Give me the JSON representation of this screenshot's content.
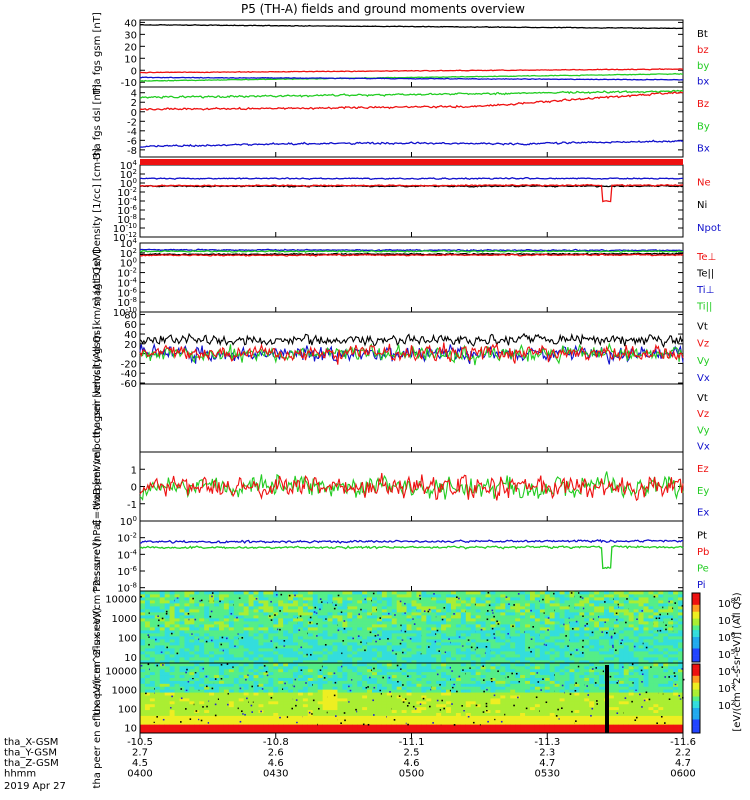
{
  "page": {
    "title": "P5 (TH-A) fields and ground moments overview"
  },
  "colors": {
    "black": "#000000",
    "red": "#ee1111",
    "green": "#22cc22",
    "blue": "#1111cc"
  },
  "bottom_axis": {
    "rows": [
      {
        "label": "tha_X-GSM",
        "values": [
          "-10.5",
          "-10.8",
          "-11.1",
          "-11.3",
          "-11.6"
        ]
      },
      {
        "label": "tha_Y-GSM",
        "values": [
          "2.7",
          "2.6",
          "2.5",
          "2.3",
          "2.2"
        ]
      },
      {
        "label": "tha_Z-GSM",
        "values": [
          "4.5",
          "4.6",
          "4.6",
          "4.7",
          "4.7"
        ]
      },
      {
        "label": "hhmm",
        "values": [
          "0400",
          "0430",
          "0500",
          "0530",
          "0600"
        ]
      }
    ],
    "date": "2019 Apr 27"
  },
  "colorbar": {
    "label": "[eV/(cm^2-s-sr-eV)] (All Qs)",
    "ticks": [
      "10^8",
      "10^7",
      "10^6",
      "10^5",
      "10^4",
      "10^3",
      "10^2"
    ]
  },
  "chart_data": [
    {
      "type": "line",
      "name": "fgs",
      "ylabel": "tha fgs gsm [nT]",
      "yticks": [
        "40",
        "30",
        "20",
        "10",
        "0",
        "-10"
      ],
      "ylim": [
        -14,
        42
      ],
      "legend": [
        {
          "name": "Bt",
          "color": "#000000"
        },
        {
          "name": "bz",
          "color": "#ee1111"
        },
        {
          "name": "by",
          "color": "#22cc22"
        },
        {
          "name": "bx",
          "color": "#1111cc"
        }
      ],
      "series": [
        {
          "name": "Bt",
          "color": "#000000",
          "start": 38,
          "end": 35
        },
        {
          "name": "bz",
          "color": "#ee1111",
          "start": -2,
          "end": 1
        },
        {
          "name": "by",
          "color": "#22cc22",
          "start": -9,
          "end": -3
        },
        {
          "name": "bx",
          "color": "#1111cc",
          "start": -6,
          "end": -8
        }
      ]
    },
    {
      "type": "line",
      "name": "fgs-dsl",
      "ylabel": "tha fgs dsl [nT]",
      "yticks": [
        "4",
        "2",
        "0",
        "-2",
        "-4",
        "-6",
        "-8"
      ],
      "ylim": [
        -9.5,
        5.2
      ],
      "legend": [
        {
          "name": "Bz",
          "color": "#ee1111"
        },
        {
          "name": "By",
          "color": "#22cc22"
        },
        {
          "name": "Bx",
          "color": "#1111cc"
        }
      ],
      "series": [
        {
          "name": "Bz",
          "color": "#ee1111",
          "start": 0.5,
          "end": 4.0
        },
        {
          "name": "By",
          "color": "#22cc22",
          "start": 3.0,
          "end": 4.3
        },
        {
          "name": "Bx",
          "color": "#1111cc",
          "start": -7.2,
          "end": -5.2
        }
      ]
    },
    {
      "type": "line",
      "name": "density",
      "ylabel": "Density [1/cc] [cm-3]",
      "yticks": [
        "10^4",
        "10^2",
        "10^0",
        "10^-2",
        "10^-4",
        "10^-6",
        "10^-8",
        "10^-10",
        "10^-12"
      ],
      "ylim": [
        -12,
        4
      ],
      "legend": [
        {
          "name": "Ne",
          "color": "#ee1111"
        },
        {
          "name": "Ni",
          "color": "#000000"
        },
        {
          "name": "Npot",
          "color": "#1111cc"
        }
      ],
      "series": [
        {
          "name": "Npot",
          "color": "#1111cc",
          "start": 1,
          "end": 1
        },
        {
          "name": "Ni",
          "color": "#000000",
          "start": -0.7,
          "end": -0.7
        },
        {
          "name": "Ne",
          "color": "#ee1111",
          "start": -0.6,
          "end": -0.5
        }
      ]
    },
    {
      "type": "line",
      "name": "temperature",
      "ylabel": "magt3 [eV]",
      "yticks": [
        "10^4",
        "10^2",
        "10^0",
        "10^-2",
        "10^-4",
        "10^-6",
        "10^-8",
        "10^-10"
      ],
      "ylim": [
        -10,
        4
      ],
      "legend": [
        {
          "name": "Te⊥",
          "color": "#ee1111"
        },
        {
          "name": "Te||",
          "color": "#000000"
        },
        {
          "name": "Ti⊥",
          "color": "#1111cc"
        },
        {
          "name": "Ti||",
          "color": "#22cc22"
        }
      ],
      "series": [
        {
          "name": "Ti⊥",
          "color": "#1111cc",
          "start": 2.6,
          "end": 2.5
        },
        {
          "name": "Ti||",
          "color": "#22cc22",
          "start": 2.3,
          "end": 2.3
        },
        {
          "name": "Te||",
          "color": "#000000",
          "start": 1.7,
          "end": 1.8
        },
        {
          "name": "Te⊥",
          "color": "#ee1111",
          "start": 1.5,
          "end": 1.6
        }
      ]
    },
    {
      "type": "line",
      "name": "peir-velocity",
      "ylabel": "tha peir velocity gsm [km/s] (All Qs)",
      "yticks": [
        "80",
        "60",
        "40",
        "20",
        "0",
        "-20",
        "-40",
        "-60"
      ],
      "ylim": [
        -62,
        85
      ],
      "legend": [
        {
          "name": "Vt",
          "color": "#000000"
        },
        {
          "name": "Vz",
          "color": "#ee1111"
        },
        {
          "name": "Vy",
          "color": "#22cc22"
        },
        {
          "name": "Vx",
          "color": "#1111cc"
        }
      ],
      "series": [
        {
          "name": "Vt",
          "color": "#000000",
          "start": 28,
          "end": 28
        },
        {
          "name": "Vx",
          "color": "#1111cc",
          "start": 0,
          "end": 0
        },
        {
          "name": "Vy",
          "color": "#22cc22",
          "start": 0,
          "end": 0
        },
        {
          "name": "Vz",
          "color": "#ee1111",
          "start": 2,
          "end": 2
        }
      ]
    },
    {
      "type": "line",
      "name": "peer-velocity",
      "ylabel": "tha peer velocity gsm [km/s] (All Qs)",
      "yticks": [],
      "ylim": [
        0,
        1
      ],
      "legend": [
        {
          "name": "Vt",
          "color": "#000000"
        },
        {
          "name": "Vz",
          "color": "#ee1111"
        },
        {
          "name": "Vy",
          "color": "#22cc22"
        },
        {
          "name": "Vx",
          "color": "#1111cc"
        }
      ],
      "series": []
    },
    {
      "type": "line",
      "name": "efield",
      "ylabel": "E=-VxB [mV/m]",
      "yticks": [
        "1",
        "0",
        "-1"
      ],
      "ylim": [
        -2,
        2
      ],
      "legend": [
        {
          "name": "Ez",
          "color": "#ee1111"
        },
        {
          "name": "Ey",
          "color": "#22cc22"
        },
        {
          "name": "Ex",
          "color": "#1111cc"
        }
      ],
      "series": [
        {
          "name": "Ey",
          "color": "#22cc22",
          "start": 0,
          "end": 0
        },
        {
          "name": "Ez",
          "color": "#ee1111",
          "start": 0,
          "end": 0
        }
      ]
    },
    {
      "type": "line",
      "name": "pressure",
      "ylabel": "Pressure [nPa]",
      "yticks": [
        "10^0",
        "10^-2",
        "10^-4",
        "10^-6",
        "10^-8"
      ],
      "ylim": [
        -8.4,
        0
      ],
      "legend": [
        {
          "name": "Pt",
          "color": "#000000"
        },
        {
          "name": "Pb",
          "color": "#ee1111"
        },
        {
          "name": "Pe",
          "color": "#22cc22"
        },
        {
          "name": "Pi",
          "color": "#1111cc"
        }
      ],
      "series": [
        {
          "name": "Pi",
          "color": "#1111cc",
          "start": -2.5,
          "end": -2.4
        },
        {
          "name": "Pe",
          "color": "#22cc22",
          "start": -3.2,
          "end": -3.1
        }
      ]
    },
    {
      "type": "heatmap",
      "name": "peir-eflux",
      "ylabel": "tha peir en eflux eV/(cm^2-s-sr-eV)",
      "yticks": [
        "10000",
        "1000",
        "100",
        "10"
      ],
      "ylim": [
        5,
        25000
      ],
      "zlim": [
        100,
        100000000
      ]
    },
    {
      "type": "heatmap",
      "name": "peer-eflux",
      "ylabel": "tha peer en eflux eV/(cm^2-s-sr-eV)",
      "yticks": [
        "10000",
        "1000",
        "100",
        "10"
      ],
      "ylim": [
        5,
        25000
      ],
      "zlim": [
        100,
        100000000
      ]
    }
  ]
}
